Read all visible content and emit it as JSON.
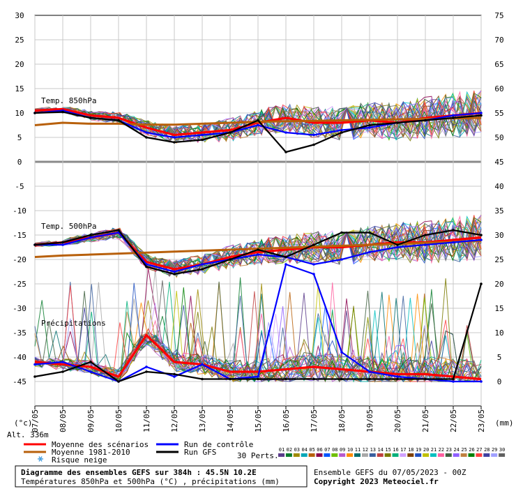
{
  "chart_data": {
    "type": "line",
    "x_dates": [
      "07/05",
      "08/05",
      "09/05",
      "10/05",
      "11/05",
      "12/05",
      "13/05",
      "14/05",
      "15/05",
      "16/05",
      "17/05",
      "18/05",
      "19/05",
      "20/05",
      "21/05",
      "22/05",
      "23/05"
    ],
    "axes": {
      "left": {
        "unit": "(°c)",
        "ticks": [
          30,
          25,
          20,
          15,
          10,
          5,
          0,
          -5,
          -10,
          -15,
          -20,
          -25,
          -30,
          -35,
          -40,
          -45
        ],
        "range": [
          -45,
          30
        ]
      },
      "right": {
        "unit": "(mm)",
        "ticks": [
          75,
          70,
          65,
          60,
          55,
          50,
          45,
          40,
          35,
          30,
          25,
          20,
          15,
          10,
          5,
          0
        ]
      },
      "alt_label": "Alt. 336m"
    },
    "panels": {
      "t850": "Temp. 850hPa",
      "t500": "Temp. 500hPa",
      "precip": "Précipitations"
    },
    "series": [
      {
        "name": "Moyenne des scénarios",
        "color": "#ff0000",
        "panel": "t850",
        "values": [
          10.5,
          10.8,
          9.5,
          9.0,
          7.0,
          5.5,
          6.0,
          6.5,
          8.0,
          9.0,
          8.0,
          8.0,
          8.5,
          8.0,
          9.0,
          9.5,
          10.0
        ]
      },
      {
        "name": "Moyenne 1981-2010",
        "color": "#b8600b",
        "panel": "t850",
        "values": [
          7.5,
          8.0,
          7.8,
          7.8,
          7.6,
          7.6,
          7.8,
          8.0,
          8.2,
          8.3,
          8.4,
          8.5,
          8.6,
          8.7,
          8.8,
          8.9,
          9.0
        ]
      },
      {
        "name": "Run de contrôle",
        "color": "#0000ff",
        "panel": "t850",
        "values": [
          10.0,
          10.5,
          9.0,
          8.5,
          6.0,
          5.0,
          5.5,
          6.0,
          7.5,
          6.0,
          5.5,
          6.5,
          7.0,
          8.0,
          8.5,
          9.5,
          10.0
        ]
      },
      {
        "name": "Run GFS",
        "color": "#000000",
        "panel": "t850",
        "values": [
          10.0,
          10.2,
          9.0,
          8.5,
          5.0,
          4.0,
          4.5,
          6.0,
          8.5,
          2.0,
          3.5,
          6.0,
          7.5,
          8.0,
          8.5,
          9.0,
          9.5
        ]
      },
      {
        "name": "Moyenne des scénarios",
        "color": "#ff0000",
        "panel": "t500",
        "values": [
          -17.0,
          -16.5,
          -15.5,
          -14.5,
          -20.5,
          -22.0,
          -21.0,
          -19.5,
          -18.5,
          -18.0,
          -17.5,
          -17.5,
          -17.0,
          -16.5,
          -16.5,
          -16.0,
          -15.5
        ]
      },
      {
        "name": "Moyenne 1981-2010",
        "color": "#b8600b",
        "panel": "t500",
        "values": [
          -19.5,
          -19.2,
          -19.0,
          -18.8,
          -18.6,
          -18.4,
          -18.2,
          -18.0,
          -17.8,
          -17.6,
          -17.4,
          -17.2,
          -17.0,
          -16.8,
          -16.6,
          -16.4,
          -16.2
        ]
      },
      {
        "name": "Run de contrôle",
        "color": "#0000ff",
        "panel": "t500",
        "values": [
          -17.0,
          -17.0,
          -15.5,
          -14.5,
          -21.0,
          -22.5,
          -21.0,
          -20.0,
          -19.0,
          -19.5,
          -21.0,
          -20.0,
          -18.5,
          -17.5,
          -17.0,
          -16.5,
          -16.0
        ]
      },
      {
        "name": "Run GFS",
        "color": "#000000",
        "panel": "t500",
        "values": [
          -17.0,
          -16.5,
          -15.0,
          -14.0,
          -21.5,
          -23.0,
          -22.0,
          -20.0,
          -18.0,
          -19.5,
          -17.0,
          -14.5,
          -14.5,
          -17.0,
          -15.0,
          -14.0,
          -15.0
        ]
      },
      {
        "name": "Moyenne des scénarios",
        "color": "#ff0000",
        "panel": "precip",
        "values": [
          4.0,
          3.5,
          3.0,
          1.0,
          9.5,
          4.0,
          3.5,
          2.0,
          2.0,
          2.5,
          3.0,
          2.5,
          2.0,
          1.5,
          1.5,
          1.0,
          0.5
        ]
      },
      {
        "name": "Run de contrôle",
        "color": "#0000ff",
        "panel": "precip",
        "values": [
          3.5,
          4.0,
          2.0,
          0.0,
          3.0,
          1.0,
          3.5,
          0.5,
          1.0,
          24.0,
          22.0,
          6.0,
          2.0,
          1.0,
          0.5,
          0.0,
          0.0
        ]
      },
      {
        "name": "Run GFS",
        "color": "#000000",
        "panel": "precip",
        "values": [
          1.0,
          2.0,
          4.0,
          0.0,
          2.0,
          1.5,
          0.5,
          0.5,
          0.5,
          0.5,
          0.5,
          0.5,
          0.5,
          0.5,
          0.5,
          0.5,
          20.0
        ]
      }
    ],
    "ensemble_colors": [
      "#5b3b8b",
      "#0b7c2e",
      "#9e8b00",
      "#00a7b8",
      "#b8600b",
      "#8b004e",
      "#0055ff",
      "#6fbf00",
      "#b85acd",
      "#ff8c00",
      "#006d6d",
      "#a8a8a8",
      "#3a5f9e",
      "#c04040",
      "#7a7a00",
      "#00b07a",
      "#d0a0ff",
      "#804000",
      "#2050c0",
      "#c0c000",
      "#00c0c0",
      "#ff60a0",
      "#406040",
      "#9060ff",
      "#c08040",
      "#008000",
      "#ff4040",
      "#4040a0",
      "#a0a0ff",
      "#606060"
    ],
    "legend": {
      "mean": "Moyenne des scénarios",
      "climo": "Moyenne 1981-2010",
      "snow": "Risque neige",
      "control": "Run de contrôle",
      "gfs": "Run GFS",
      "perts": "30 Perts."
    },
    "footer": {
      "title": "Diagramme des ensembles GEFS sur 384h : 45.5N 10.2E",
      "subtitle": "Températures 850hPa et 500hPa (°C) , précipitations (mm)",
      "run": "Ensemble GEFS du 07/05/2023 - 00Z",
      "copyright": "Copyright 2023 Meteociel.fr"
    },
    "pert_numbers": [
      "01",
      "02",
      "03",
      "04",
      "05",
      "06",
      "07",
      "08",
      "09",
      "10",
      "11",
      "12",
      "13",
      "14",
      "15",
      "16",
      "17",
      "18",
      "19",
      "20",
      "21",
      "22",
      "23",
      "24",
      "25",
      "26",
      "27",
      "28",
      "29",
      "30"
    ]
  }
}
